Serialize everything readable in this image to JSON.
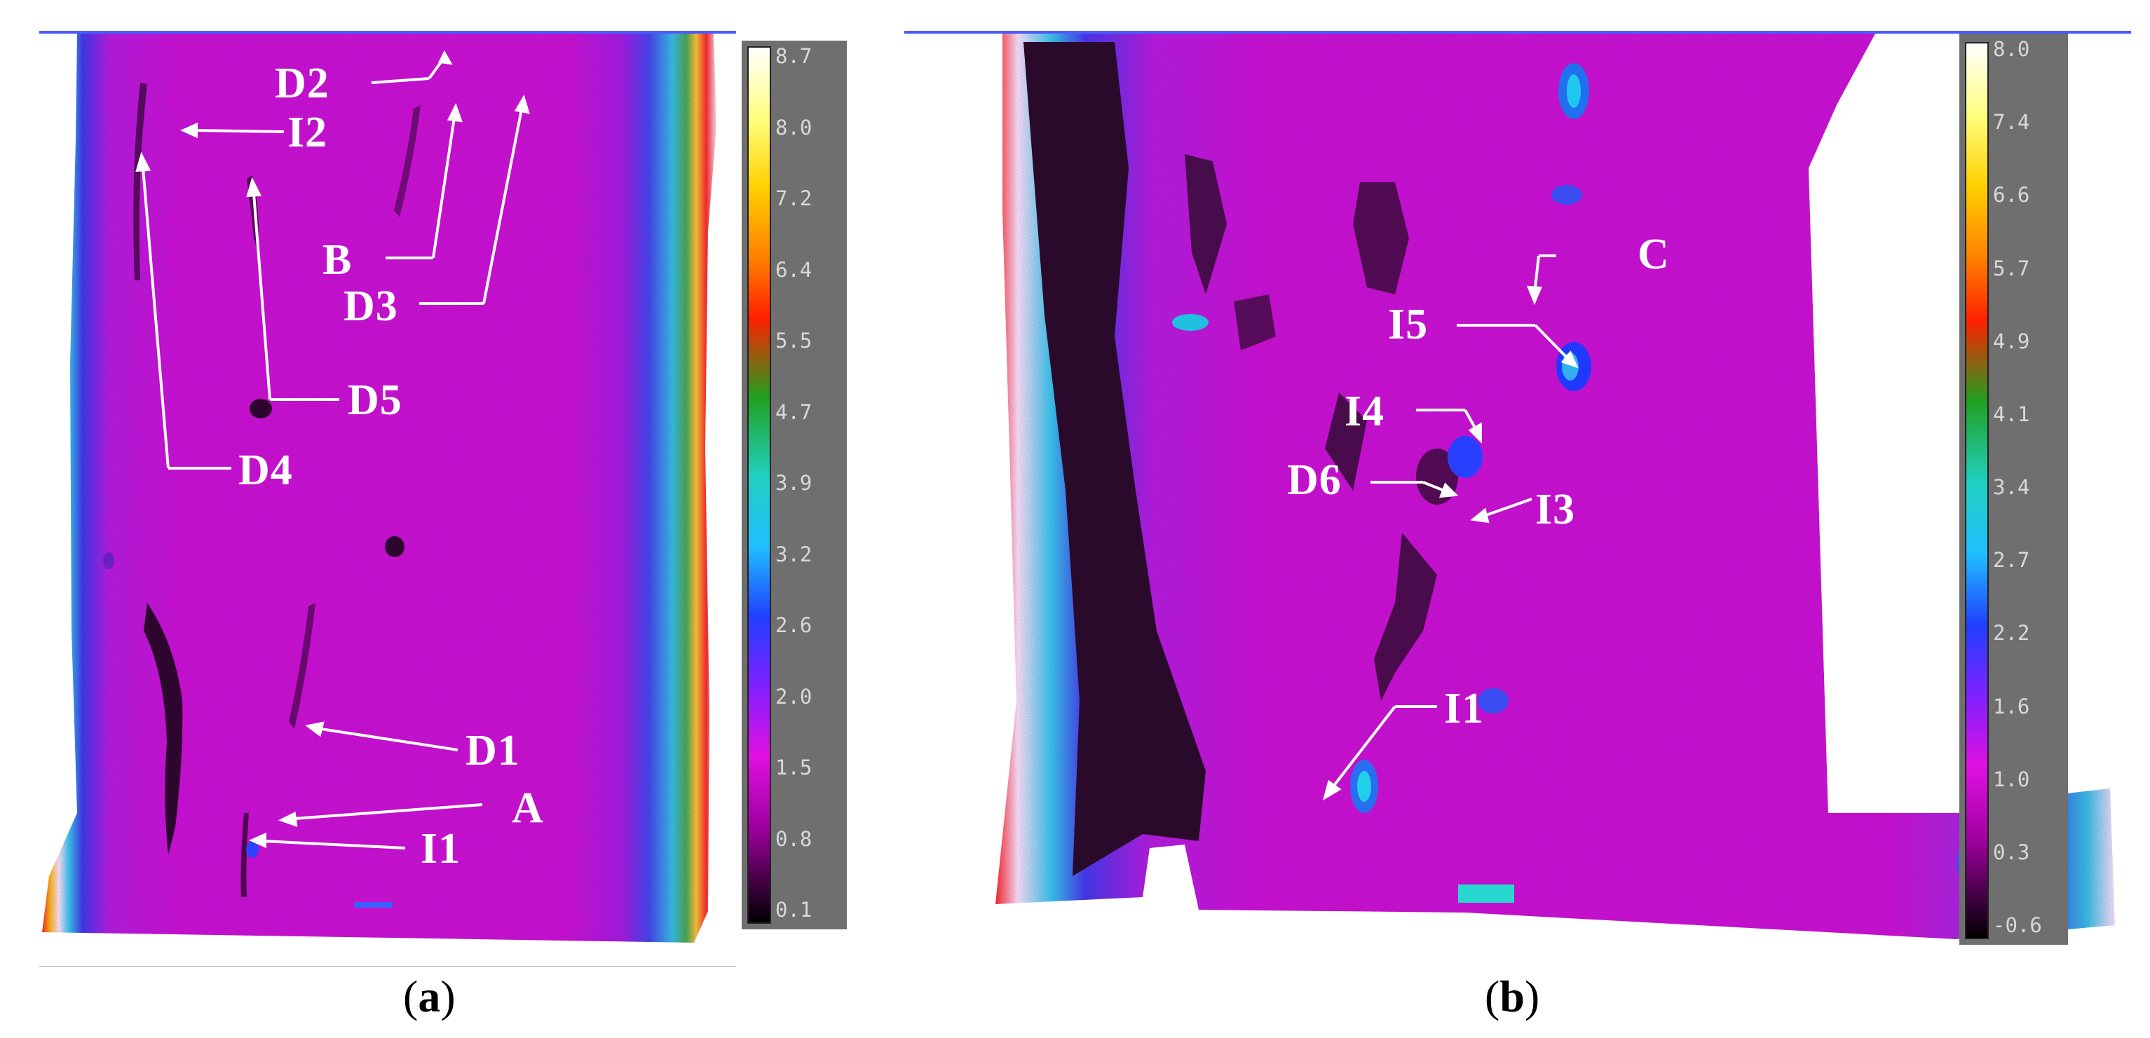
{
  "panels": [
    {
      "caption_open": "(",
      "caption_letter": "a",
      "caption_close": ")",
      "markers": [
        "D2",
        "I2",
        "B",
        "D3",
        "D5",
        "D4",
        "D1",
        "A",
        "I1"
      ],
      "colorbar": {
        "ticks": [
          "8.7",
          "8.0",
          "7.2",
          "6.4",
          "5.5",
          "4.7",
          "3.9",
          "3.2",
          "2.6",
          "2.0",
          "1.5",
          "0.8",
          "0.1"
        ]
      }
    },
    {
      "caption_open": "(",
      "caption_letter": "b",
      "caption_close": ")",
      "markers": [
        "C",
        "I5",
        "I4",
        "D6",
        "I3",
        "I1"
      ],
      "colorbar": {
        "ticks": [
          "8.0",
          "7.4",
          "6.6",
          "5.7",
          "4.9",
          "4.1",
          "3.4",
          "2.7",
          "2.2",
          "1.6",
          "1.0",
          "0.3",
          "-0.6"
        ]
      }
    }
  ],
  "colors": {
    "background_magenta": "#c814d4",
    "dark_defect": "#3a0838",
    "edge_blue": "#3030e8",
    "edge_cyan": "#18d8e8",
    "frame_line": "#4a5cff"
  }
}
